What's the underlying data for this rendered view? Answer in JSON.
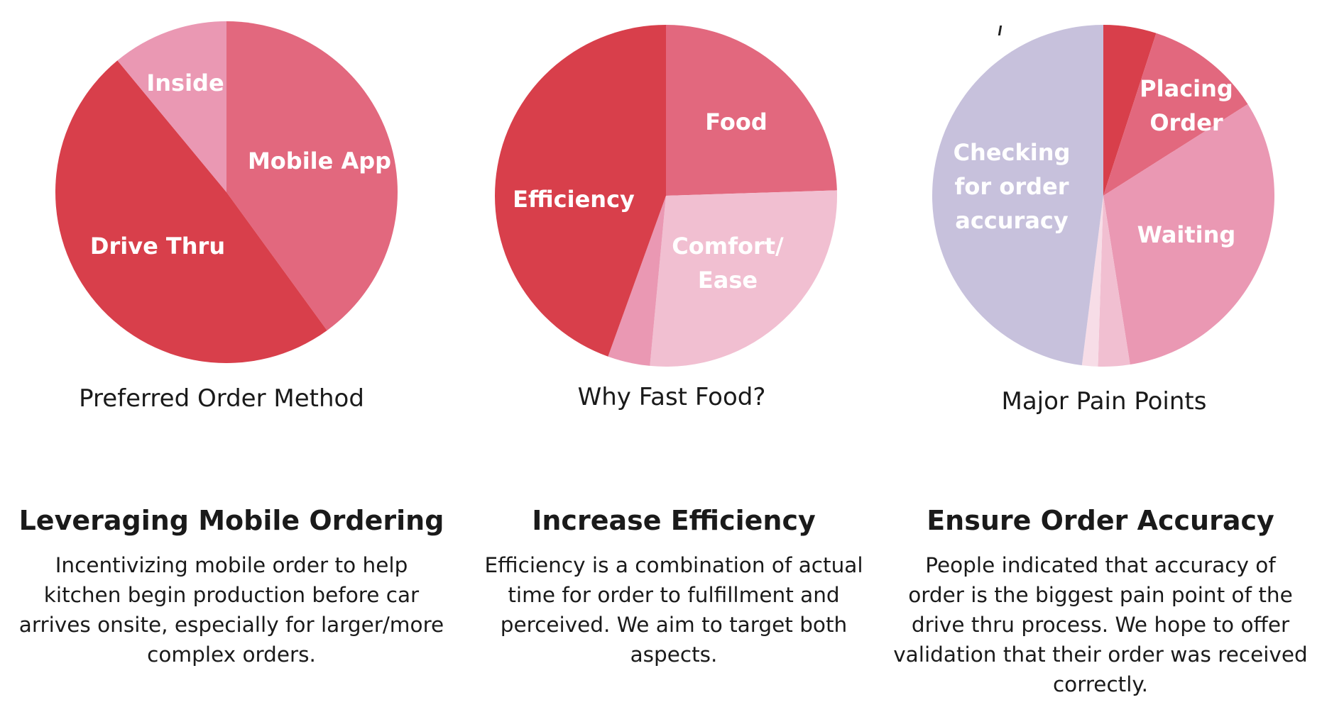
{
  "chart_data": [
    {
      "type": "pie",
      "title": "Preferred Order Method",
      "slices": [
        {
          "label": "Mobile App",
          "value": 40
        },
        {
          "label": "Drive Thru",
          "value": 49
        },
        {
          "label": "Inside",
          "value": 11
        }
      ],
      "colors": [
        "#e2687e",
        "#d83f4b",
        "#ea98b3"
      ]
    },
    {
      "type": "pie",
      "title": "Why Fast Food?",
      "slices": [
        {
          "label": "Food",
          "value": 24.5
        },
        {
          "label": "Comfort/ Ease",
          "value": 27
        },
        {
          "label": "",
          "value": 4
        },
        {
          "label": "Efficiency",
          "value": 44.5
        }
      ],
      "colors": [
        "#e2687e",
        "#f1bfd1",
        "#ea98b3",
        "#d83f4b"
      ]
    },
    {
      "type": "pie",
      "title": "Major Pain Points",
      "slices": [
        {
          "label": "",
          "value": 5
        },
        {
          "label": "Placing Order",
          "value": 11
        },
        {
          "label": "Waiting",
          "value": 31.5
        },
        {
          "label": "",
          "value": 3
        },
        {
          "label": "",
          "value": 1.5
        },
        {
          "label": "Checking for order accuracy",
          "value": 48
        }
      ],
      "colors": [
        "#d83f4b",
        "#e2687e",
        "#ea98b3",
        "#f1bfd1",
        "#f7dde7",
        "#c7c1dc"
      ]
    }
  ],
  "sections": [
    {
      "heading": "Leveraging Mobile Ordering",
      "lines": [
        "Incentivizing mobile order to help",
        "kitchen begin production before car",
        "arrives onsite, especially for larger/more",
        "complex orders."
      ]
    },
    {
      "heading": "Increase Efficiency",
      "lines": [
        "Efficiency is a combination of actual",
        "time for order to fulfillment and",
        "perceived. We aim to target both",
        "aspects."
      ]
    },
    {
      "heading": "Ensure Order Accuracy",
      "lines": [
        "People indicated that accuracy of",
        "order is the biggest pain point of the",
        "drive thru process. We hope to offer",
        "validation that their order was received",
        "correctly."
      ]
    }
  ]
}
